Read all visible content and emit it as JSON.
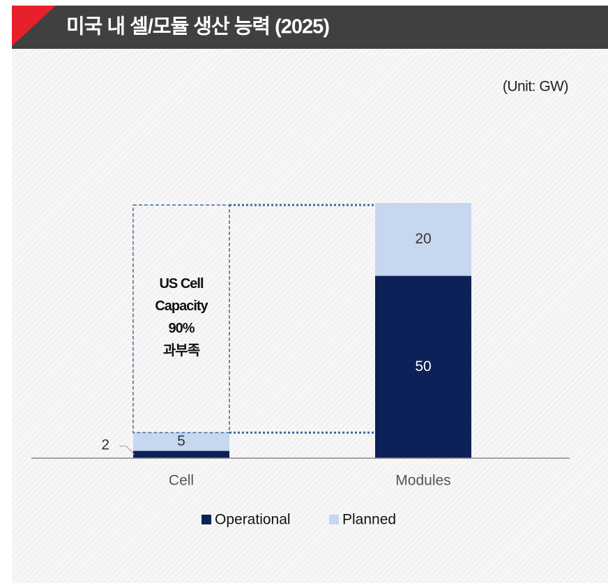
{
  "chart_data": {
    "type": "stacked_bar",
    "title": "미국 내 셀/모듈 생산 능력 (2025)",
    "unit_label": "(Unit: GW)",
    "annotation_lines": [
      "US Cell",
      "Capacity",
      "90%",
      "과부족"
    ],
    "categories": [
      "Cell",
      "Modules"
    ],
    "series": [
      {
        "name": "Operational",
        "color": "#0c2157",
        "values": [
          2,
          50
        ]
      },
      {
        "name": "Planned",
        "color": "#c6d7ef",
        "values": [
          5,
          20
        ]
      }
    ],
    "ylim": [
      0,
      70
    ]
  }
}
